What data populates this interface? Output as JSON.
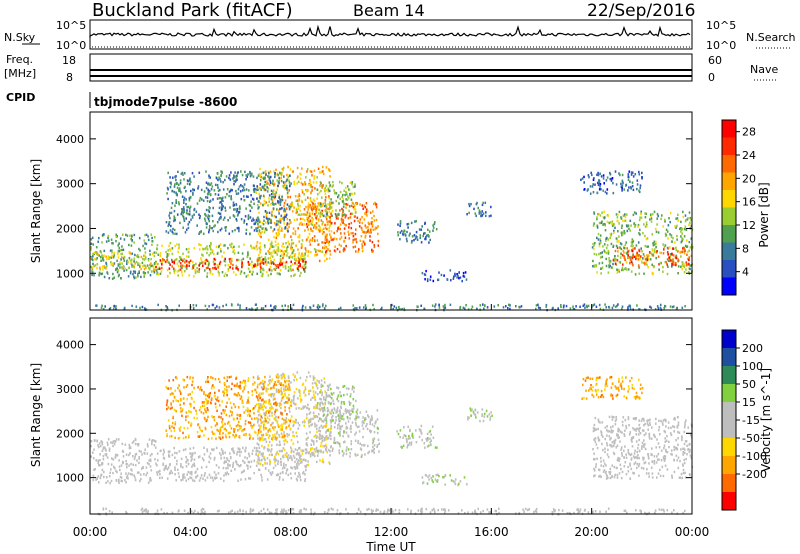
{
  "header": {
    "station": "Buckland Park (fitACF)",
    "beam": "Beam 14",
    "date": "22/Sep/2016",
    "control_program": "tbjmode7pulse -8600"
  },
  "strip_panels": {
    "nsky_label": "N.Sky",
    "nsky_ticks": [
      "10^5",
      "10^0"
    ],
    "nsearch_label": "N.Search",
    "nsearch_ticks": [
      "10^5",
      "10^0"
    ],
    "freq_label": "Freq.",
    "freq_unit": "[MHz]",
    "freq_ticks": [
      "18",
      "8"
    ],
    "nave_label": "Nave",
    "nave_ticks": [
      "60",
      "0"
    ],
    "cpid_label": "CPID"
  },
  "x_axis": {
    "label": "Time UT",
    "ticks": [
      "00:00",
      "04:00",
      "08:00",
      "12:00",
      "16:00",
      "20:00",
      "00:00"
    ]
  },
  "colors": {
    "power_scale": [
      "#0000ff",
      "#2a4fc0",
      "#3a7a9a",
      "#50a050",
      "#9acd32",
      "#ffd700",
      "#ffa500",
      "#ff6a00",
      "#ff2a00",
      "#ff0000"
    ],
    "velocity_scale": [
      "#ff0000",
      "#ff6a00",
      "#ffa500",
      "#ffd700",
      "#bebebe",
      "#bebebe",
      "#80d040",
      "#2e8b57",
      "#1e4fa0",
      "#0000cd"
    ]
  },
  "chart_data": [
    {
      "type": "heatmap",
      "title": "Power",
      "xlabel": "Time UT",
      "ylabel": "Slant Range [km]",
      "xlim": [
        0,
        24
      ],
      "ylim": [
        180,
        4600
      ],
      "y_ticks": [
        "1000",
        "2000",
        "3000",
        "4000"
      ],
      "colorbar": {
        "label": "Power [dB]",
        "ticks": [
          "4",
          "8",
          "12",
          "16",
          "20",
          "24",
          "28"
        ],
        "range": [
          0,
          30
        ]
      },
      "regions": [
        {
          "t": [
            0,
            2.6
          ],
          "range": [
            900,
            1900
          ],
          "value": 10
        },
        {
          "t": [
            0,
            2.6
          ],
          "range": [
            1100,
            1500
          ],
          "value": 16
        },
        {
          "t": [
            2.6,
            8.6
          ],
          "range": [
            950,
            1700
          ],
          "value": 14
        },
        {
          "t": [
            2.6,
            8.6
          ],
          "range": [
            1100,
            1350
          ],
          "value": 26
        },
        {
          "t": [
            6.6,
            9.6
          ],
          "range": [
            1300,
            3400
          ],
          "value": 18
        },
        {
          "t": [
            8.6,
            11.5
          ],
          "range": [
            1500,
            2600
          ],
          "value": 22
        },
        {
          "t": [
            9.0,
            10.6
          ],
          "range": [
            2300,
            3100
          ],
          "value": 12
        },
        {
          "t": [
            3.0,
            8.0
          ],
          "range": [
            1900,
            3300
          ],
          "value": 8
        },
        {
          "t": [
            12.2,
            13.8
          ],
          "range": [
            1700,
            2200
          ],
          "value": 8
        },
        {
          "t": [
            15.0,
            16.0
          ],
          "range": [
            2300,
            2600
          ],
          "value": 6
        },
        {
          "t": [
            13.2,
            15.0
          ],
          "range": [
            850,
            1100
          ],
          "value": 5
        },
        {
          "t": [
            20.0,
            24.0
          ],
          "range": [
            1000,
            2400
          ],
          "value": 12
        },
        {
          "t": [
            20.8,
            24.0
          ],
          "range": [
            1200,
            1600
          ],
          "value": 24
        },
        {
          "t": [
            19.5,
            22.0
          ],
          "range": [
            2800,
            3300
          ],
          "value": 6
        },
        {
          "t": [
            0,
            24
          ],
          "range": [
            200,
            330
          ],
          "value": 8
        }
      ]
    },
    {
      "type": "heatmap",
      "title": "Velocity",
      "xlabel": "Time UT",
      "ylabel": "Slant Range [km]",
      "xlim": [
        0,
        24
      ],
      "ylim": [
        180,
        4600
      ],
      "y_ticks": [
        "1000",
        "2000",
        "3000",
        "4000"
      ],
      "colorbar": {
        "label": "Velocity [m s^-1]",
        "ticks": [
          "200",
          "100",
          "50",
          "15",
          "-15",
          "-50",
          "-100",
          "-200"
        ],
        "range": [
          -250,
          250
        ]
      },
      "regions": [
        {
          "t": [
            0,
            2.6
          ],
          "range": [
            900,
            1900
          ],
          "value": 0
        },
        {
          "t": [
            2.6,
            8.6
          ],
          "range": [
            950,
            1700
          ],
          "value": 0
        },
        {
          "t": [
            6.6,
            9.6
          ],
          "range": [
            1300,
            3400
          ],
          "value": -40
        },
        {
          "t": [
            8.6,
            11.5
          ],
          "range": [
            1500,
            2600
          ],
          "value": 10
        },
        {
          "t": [
            9.0,
            10.6
          ],
          "range": [
            2300,
            3100
          ],
          "value": 40
        },
        {
          "t": [
            3.0,
            8.0
          ],
          "range": [
            1900,
            3300
          ],
          "value": -120
        },
        {
          "t": [
            12.2,
            13.8
          ],
          "range": [
            1700,
            2200
          ],
          "value": 30
        },
        {
          "t": [
            15.0,
            16.0
          ],
          "range": [
            2300,
            2600
          ],
          "value": 30
        },
        {
          "t": [
            13.2,
            15.0
          ],
          "range": [
            850,
            1100
          ],
          "value": 40
        },
        {
          "t": [
            20.0,
            24.0
          ],
          "range": [
            1000,
            2400
          ],
          "value": 0
        },
        {
          "t": [
            19.5,
            22.0
          ],
          "range": [
            2800,
            3300
          ],
          "value": -120
        },
        {
          "t": [
            0,
            24
          ],
          "range": [
            200,
            330
          ],
          "value": 0
        }
      ]
    }
  ]
}
